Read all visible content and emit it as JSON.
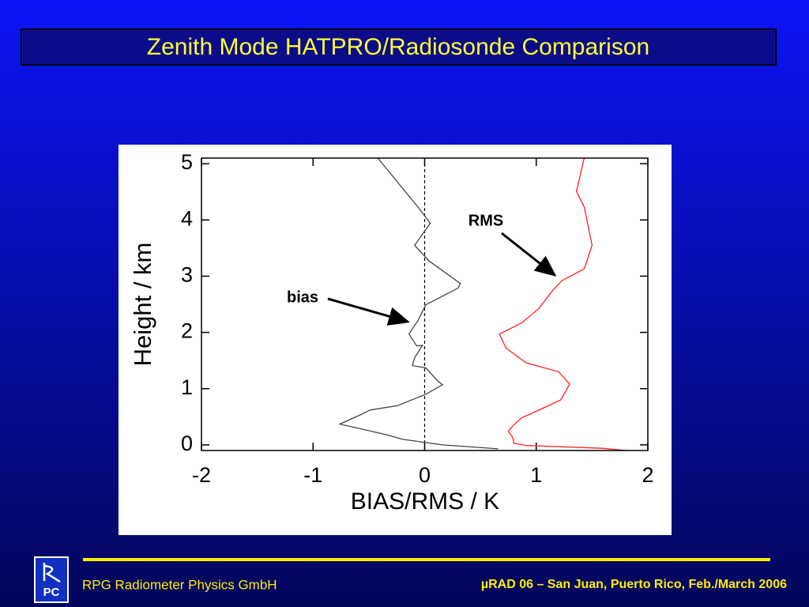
{
  "slide": {
    "title": "Zenith Mode HATPRO/Radiosonde Comparison",
    "logo_text": "PC",
    "footer_left": "RPG Radiometer Physics GmbH",
    "footer_right": "µRAD 06  – San Juan, Puerto Rico,  Feb./March  2006"
  },
  "chart_data": {
    "type": "line",
    "x_label": "BIAS/RMS / K",
    "y_label": "Height / km",
    "xlim": [
      -2,
      2
    ],
    "xticks": [
      -2,
      -1,
      0,
      1,
      2
    ],
    "ylim": [
      -0.1,
      5.1
    ],
    "yticks": [
      0,
      1,
      2,
      3,
      4,
      5
    ],
    "reference_line_x": 0,
    "annotations": [
      "bias",
      "RMS"
    ],
    "series": [
      {
        "color": "#444444",
        "x": [
          -0.42,
          -0.06,
          0.05,
          -0.09,
          0.04,
          0.32,
          0.3,
          0.01,
          -0.06,
          -0.14,
          -0.07,
          -0.02,
          -0.09,
          -0.11,
          0.01,
          0.12,
          0.16,
          0.01,
          -0.24,
          -0.49,
          -0.57,
          -0.76,
          -0.56,
          -0.34,
          -0.2,
          0.16,
          0.66
        ],
        "y": [
          5.1,
          4.23,
          3.94,
          3.55,
          3.27,
          2.87,
          2.79,
          2.49,
          2.21,
          1.97,
          1.76,
          1.77,
          1.55,
          1.41,
          1.37,
          1.13,
          1.07,
          0.9,
          0.7,
          0.62,
          0.54,
          0.37,
          0.28,
          0.18,
          0.1,
          0.0,
          -0.07
        ]
      },
      {
        "color": "#ff2020",
        "x": [
          1.43,
          1.36,
          1.43,
          1.5,
          1.43,
          1.23,
          1.15,
          1.02,
          0.87,
          0.67,
          0.73,
          0.91,
          1.2,
          1.3,
          1.22,
          1.07,
          0.87,
          0.79,
          0.75,
          0.79,
          0.8,
          0.91,
          1.59,
          1.81
        ],
        "y": [
          5.1,
          4.51,
          4.23,
          3.55,
          3.13,
          2.92,
          2.75,
          2.42,
          2.17,
          1.97,
          1.72,
          1.46,
          1.3,
          1.08,
          0.8,
          0.66,
          0.48,
          0.34,
          0.24,
          0.13,
          0.03,
          -0.01,
          -0.06,
          -0.1
        ]
      }
    ]
  }
}
